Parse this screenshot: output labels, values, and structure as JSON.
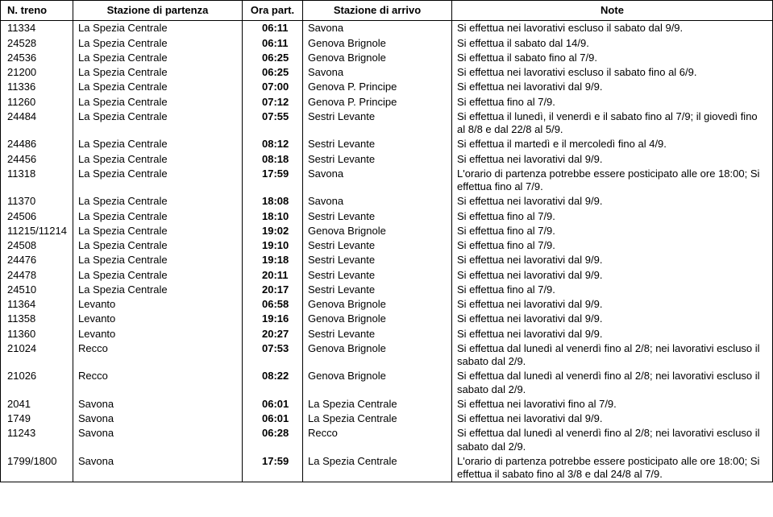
{
  "headers": {
    "treno": "N. treno",
    "partenza": "Stazione di partenza",
    "ora": "Ora part.",
    "arrivo": "Stazione di arrivo",
    "note": "Note"
  },
  "rows": [
    {
      "n": "11334",
      "from": "La Spezia Centrale",
      "time": "06:11",
      "to": "Savona",
      "note": "Si effettua nei lavorativi escluso il sabato dal 9/9."
    },
    {
      "n": "24528",
      "from": "La Spezia Centrale",
      "time": "06:11",
      "to": "Genova Brignole",
      "note": "Si effettua il sabato dal 14/9."
    },
    {
      "n": "24536",
      "from": "La Spezia Centrale",
      "time": "06:25",
      "to": "Genova Brignole",
      "note": "Si effettua il sabato fino al 7/9."
    },
    {
      "n": "21200",
      "from": "La Spezia Centrale",
      "time": "06:25",
      "to": "Savona",
      "note": "Si effettua nei lavorativi escluso il sabato fino al 6/9."
    },
    {
      "n": "11336",
      "from": "La Spezia Centrale",
      "time": "07:00",
      "to": "Genova P. Principe",
      "note": "Si effettua nei lavorativi dal 9/9."
    },
    {
      "n": "11260",
      "from": "La Spezia Centrale",
      "time": "07:12",
      "to": "Genova P. Principe",
      "note": "Si effettua fino al 7/9."
    },
    {
      "n": "24484",
      "from": "La Spezia Centrale",
      "time": "07:55",
      "to": "Sestri Levante",
      "note": "Si effettua il lunedì, il venerdì e il sabato fino al 7/9; il giovedì fino al 8/8 e dal 22/8 al 5/9."
    },
    {
      "n": "24486",
      "from": "La Spezia Centrale",
      "time": "08:12",
      "to": "Sestri Levante",
      "note": "Si effettua il martedì e il mercoledì fino al 4/9."
    },
    {
      "n": "24456",
      "from": "La Spezia Centrale",
      "time": "08:18",
      "to": "Sestri Levante",
      "note": "Si effettua nei lavorativi dal 9/9."
    },
    {
      "n": "11318",
      "from": "La Spezia Centrale",
      "time": "17:59",
      "to": "Savona",
      "note": "L'orario di partenza potrebbe essere posticipato alle ore 18:00; Si effettua fino al 7/9."
    },
    {
      "n": "11370",
      "from": "La Spezia Centrale",
      "time": "18:08",
      "to": "Savona",
      "note": "Si effettua nei lavorativi dal 9/9."
    },
    {
      "n": "24506",
      "from": "La Spezia Centrale",
      "time": "18:10",
      "to": "Sestri Levante",
      "note": "Si effettua fino al 7/9."
    },
    {
      "n": "11215/11214",
      "from": "La Spezia Centrale",
      "time": "19:02",
      "to": "Genova Brignole",
      "note": "Si effettua fino al 7/9."
    },
    {
      "n": "24508",
      "from": "La Spezia Centrale",
      "time": "19:10",
      "to": "Sestri Levante",
      "note": "Si effettua fino al 7/9."
    },
    {
      "n": "24476",
      "from": "La Spezia Centrale",
      "time": "19:18",
      "to": "Sestri Levante",
      "note": "Si effettua nei lavorativi dal 9/9."
    },
    {
      "n": "24478",
      "from": "La Spezia Centrale",
      "time": "20:11",
      "to": "Sestri Levante",
      "note": "Si effettua nei lavorativi dal 9/9."
    },
    {
      "n": "24510",
      "from": "La Spezia Centrale",
      "time": "20:17",
      "to": "Sestri Levante",
      "note": "Si effettua fino al 7/9."
    },
    {
      "n": "11364",
      "from": "Levanto",
      "time": "06:58",
      "to": "Genova Brignole",
      "note": "Si effettua nei lavorativi dal 9/9."
    },
    {
      "n": "11358",
      "from": "Levanto",
      "time": "19:16",
      "to": "Genova Brignole",
      "note": "Si effettua nei lavorativi dal 9/9."
    },
    {
      "n": "11360",
      "from": "Levanto",
      "time": "20:27",
      "to": "Sestri Levante",
      "note": "Si effettua nei lavorativi dal 9/9."
    },
    {
      "n": "21024",
      "from": "Recco",
      "time": "07:53",
      "to": "Genova Brignole",
      "note": "Si effettua dal lunedì al venerdì fino al 2/8; nei lavorativi escluso il sabato dal 2/9."
    },
    {
      "n": "21026",
      "from": "Recco",
      "time": "08:22",
      "to": "Genova Brignole",
      "note": "Si effettua dal lunedì al venerdì fino al 2/8; nei lavorativi escluso il sabato dal 2/9."
    },
    {
      "n": "2041",
      "from": "Savona",
      "time": "06:01",
      "to": "La Spezia Centrale",
      "note": "Si effettua nei lavorativi fino al 7/9."
    },
    {
      "n": "1749",
      "from": "Savona",
      "time": "06:01",
      "to": "La Spezia Centrale",
      "note": "Si effettua nei lavorativi dal 9/9."
    },
    {
      "n": "11243",
      "from": "Savona",
      "time": "06:28",
      "to": "Recco",
      "note": "Si effettua dal lunedì al venerdì fino al 2/8; nei lavorativi escluso il sabato dal 2/9."
    },
    {
      "n": "1799/1800",
      "from": "Savona",
      "time": "17:59",
      "to": "La Spezia Centrale",
      "note": "L'orario di partenza potrebbe essere posticipato alle ore 18:00; Si effettua il sabato fino al 3/8 e dal 24/8 al 7/9."
    }
  ]
}
